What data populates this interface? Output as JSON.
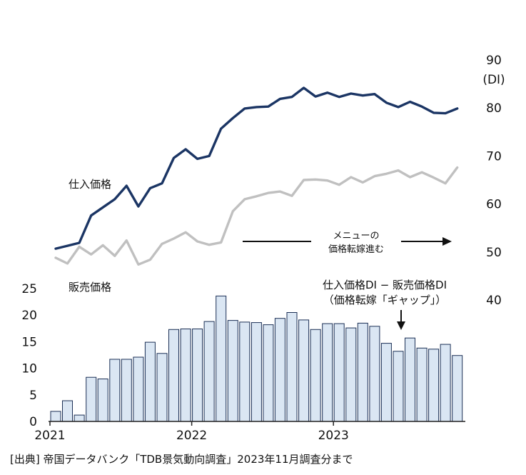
{
  "chart_data": {
    "type": "bar+line",
    "right_axis": {
      "unit_label": "(DI)",
      "ticks": [
        90,
        80,
        70,
        60,
        50,
        40
      ],
      "range": [
        40,
        90
      ]
    },
    "left_axis": {
      "ticks": [
        25,
        20,
        15,
        10,
        5,
        0
      ],
      "range": [
        0,
        25
      ]
    },
    "x_tick_labels": [
      "2021",
      "2022",
      "2023"
    ],
    "x_tick_index": [
      0,
      12,
      24
    ],
    "series": [
      {
        "name": "仕入価格",
        "color": "#1b3564",
        "values": [
          50.7,
          51.3,
          51.9,
          57.6,
          59.3,
          61.0,
          63.8,
          59.5,
          63.3,
          64.3,
          69.6,
          71.4,
          69.4,
          70.0,
          75.7,
          77.9,
          79.9,
          80.2,
          80.3,
          81.9,
          82.3,
          84.2,
          82.4,
          83.2,
          82.3,
          83.0,
          82.6,
          82.9,
          81.1,
          80.2,
          81.3,
          80.3,
          79.0,
          78.9,
          79.9
        ]
      },
      {
        "name": "販売価格",
        "color": "#c0c0c0",
        "values": [
          48.8,
          47.6,
          51.1,
          49.5,
          51.4,
          49.2,
          52.4,
          47.4,
          48.4,
          51.7,
          52.8,
          54.1,
          52.2,
          51.5,
          52.0,
          58.5,
          61.0,
          61.6,
          62.3,
          62.6,
          61.7,
          65.0,
          65.1,
          64.9,
          64.0,
          65.6,
          64.5,
          65.8,
          66.3,
          67.0,
          65.6,
          66.6,
          65.5,
          64.3,
          67.6
        ]
      },
      {
        "name": "仕入価格DI − 販売価格DI",
        "type": "bar",
        "color": "#dae6f3",
        "values": [
          1.9,
          3.9,
          1.2,
          8.3,
          8.0,
          11.7,
          11.7,
          12.1,
          14.9,
          12.8,
          17.3,
          17.4,
          17.4,
          18.8,
          23.6,
          19.0,
          18.7,
          18.6,
          18.2,
          19.4,
          20.5,
          19.1,
          17.3,
          18.4,
          18.4,
          17.6,
          18.5,
          17.9,
          14.7,
          13.2,
          15.7,
          13.8,
          13.6,
          14.5,
          12.4
        ]
      }
    ],
    "labels": {
      "purchase_price": "仕入価格",
      "selling_price": "販売価格",
      "menu_line1": "メニューの",
      "menu_line2": "価格転嫁進む",
      "gap_line1": "仕入価格DI − 販売価格DI",
      "gap_line2": "（価格転嫁「ギャップ」）"
    }
  },
  "source_note": "[出典] 帝国データバンク「TDB景気動向調査」2023年11月調査分まで"
}
